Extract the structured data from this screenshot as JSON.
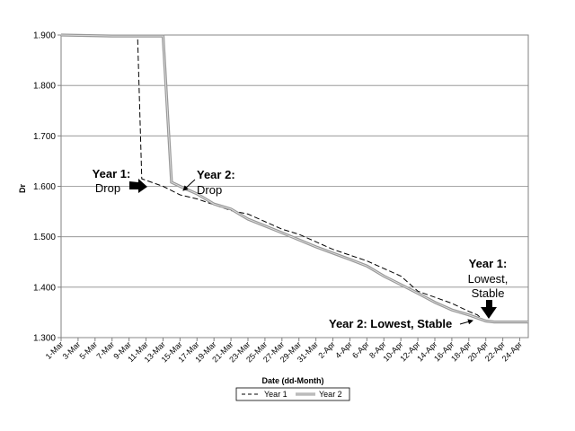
{
  "chart_data": {
    "type": "line",
    "title": "",
    "xlabel": "Date (dd-Month)",
    "ylabel": "Dr",
    "ylim": [
      1.3,
      1.9
    ],
    "yticks": [
      "1.300",
      "1.400",
      "1.500",
      "1.600",
      "1.700",
      "1.800",
      "1.900"
    ],
    "xticks": [
      "1-Mar",
      "3-Mar",
      "5-Mar",
      "7-Mar",
      "9-Mar",
      "11-Mar",
      "13-Mar",
      "15-Mar",
      "17-Mar",
      "19-Mar",
      "21-Mar",
      "23-Mar",
      "25-Mar",
      "27-Mar",
      "29-Mar",
      "31-Mar",
      "2-Apr",
      "4-Apr",
      "6-Apr",
      "8-Apr",
      "10-Apr",
      "12-Apr",
      "14-Apr",
      "16-Apr",
      "18-Apr",
      "20-Apr",
      "22-Apr",
      "24-Apr"
    ],
    "grid": "horizontal",
    "legend": "bottom-center",
    "series": [
      {
        "name": "Year 1",
        "style": "dashed",
        "color": "#000000",
        "x": [
          "1-Mar",
          "9-Mar",
          "10-Mar",
          "10.5-Mar",
          "13-Mar",
          "15-Mar",
          "17-Mar",
          "21-Mar",
          "23-Mar",
          "27-Mar",
          "29-Mar",
          "2-Apr",
          "6-Apr",
          "10-Apr",
          "12-Apr",
          "16-Apr",
          "18-Apr",
          "19-Apr",
          "20-Apr",
          "25-Apr"
        ],
        "values": [
          1.9,
          1.9,
          1.9,
          1.615,
          1.6,
          1.583,
          1.575,
          1.552,
          1.545,
          1.515,
          1.505,
          1.475,
          1.452,
          1.422,
          1.392,
          1.368,
          1.352,
          1.345,
          1.331,
          1.331
        ]
      },
      {
        "name": "Year 2",
        "style": "solid",
        "color": "#999999",
        "x": [
          "1-Mar",
          "7-Mar",
          "13-Mar",
          "14-Mar",
          "15-Mar",
          "17-Mar",
          "19-Mar",
          "21-Mar",
          "23-Mar",
          "27-Mar",
          "31-Mar",
          "4-Apr",
          "6-Apr",
          "8-Apr",
          "10-Apr",
          "12-Apr",
          "14-Apr",
          "16-Apr",
          "18-Apr",
          "20-Apr",
          "21-Apr",
          "25-Apr"
        ],
        "values": [
          1.9,
          1.898,
          1.898,
          1.608,
          1.6,
          1.585,
          1.565,
          1.555,
          1.535,
          1.508,
          1.48,
          1.455,
          1.442,
          1.422,
          1.405,
          1.388,
          1.37,
          1.355,
          1.345,
          1.333,
          1.331,
          1.331
        ]
      }
    ],
    "annotations": [
      {
        "id": "y1-drop",
        "heading": "Year 1:",
        "text": "Drop"
      },
      {
        "id": "y2-drop",
        "heading": "Year 2:",
        "text": "Drop"
      },
      {
        "id": "y1-lowest",
        "heading": "Year 1:",
        "line1": "Lowest,",
        "line2": "Stable"
      },
      {
        "id": "y2-lowest",
        "text": "Year 2: Lowest, Stable"
      }
    ]
  }
}
